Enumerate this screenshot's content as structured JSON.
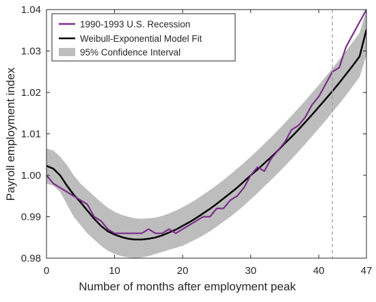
{
  "chart_data": {
    "type": "line",
    "xlabel": "Number of months after employment peak",
    "ylabel": "Payroll employment index",
    "xlim": [
      0,
      47
    ],
    "ylim": [
      0.98,
      1.04
    ],
    "x_ticks": [
      0,
      10,
      20,
      30,
      40,
      47
    ],
    "x_tick_labels": [
      "0",
      "10",
      "20",
      "30",
      "40",
      "47"
    ],
    "y_ticks": [
      0.98,
      0.99,
      1.0,
      1.01,
      1.02,
      1.03,
      1.04
    ],
    "y_tick_labels": [
      "0.98",
      "0.99",
      "1.00",
      "1.01",
      "1.02",
      "1.03",
      "1.04"
    ],
    "grid": false,
    "legend_position": "top-left",
    "vertical_reference_line": {
      "x": 42,
      "style": "dashed",
      "color": "#999999"
    },
    "colors": {
      "recession": "#7b2d8b",
      "fit": "#000000",
      "confidence": "#bdbdbd"
    },
    "series": [
      {
        "name": "1990-1993 U.S. Recession",
        "kind": "line",
        "x": [
          0,
          1,
          2,
          3,
          4,
          5,
          6,
          7,
          8,
          9,
          10,
          11,
          12,
          13,
          14,
          15,
          16,
          17,
          18,
          19,
          20,
          21,
          22,
          23,
          24,
          25,
          26,
          27,
          28,
          29,
          30,
          31,
          32,
          33,
          34,
          35,
          36,
          37,
          38,
          39,
          40,
          41,
          42,
          43,
          44,
          45,
          46,
          47
        ],
        "y": [
          1.0,
          0.998,
          0.997,
          0.996,
          0.995,
          0.994,
          0.993,
          0.99,
          0.989,
          0.987,
          0.986,
          0.986,
          0.986,
          0.986,
          0.986,
          0.987,
          0.986,
          0.986,
          0.987,
          0.986,
          0.987,
          0.988,
          0.989,
          0.99,
          0.99,
          0.992,
          0.992,
          0.994,
          0.995,
          0.997,
          1.0,
          1.002,
          1.001,
          1.004,
          1.006,
          1.008,
          1.011,
          1.012,
          1.014,
          1.017,
          1.019,
          1.022,
          1.025,
          1.026,
          1.031,
          1.034,
          1.037,
          1.04
        ]
      },
      {
        "name": "Weibull-Exponential Model Fit",
        "kind": "line",
        "x": [
          0,
          1,
          2,
          3,
          4,
          5,
          6,
          7,
          8,
          9,
          10,
          11,
          12,
          13,
          14,
          15,
          16,
          17,
          18,
          19,
          20,
          21,
          22,
          23,
          24,
          25,
          26,
          27,
          28,
          29,
          30,
          31,
          32,
          33,
          34,
          35,
          36,
          37,
          38,
          39,
          40,
          41,
          42,
          43,
          44,
          45,
          46,
          47
        ],
        "y": [
          1.0023,
          1.0016,
          1.0,
          0.9975,
          0.9953,
          0.9935,
          0.9915,
          0.9895,
          0.9878,
          0.9865,
          0.9857,
          0.9851,
          0.9847,
          0.9845,
          0.9845,
          0.9847,
          0.985,
          0.9855,
          0.9862,
          0.9869,
          0.9878,
          0.9887,
          0.9897,
          0.9908,
          0.9919,
          0.9931,
          0.9944,
          0.9957,
          0.997,
          0.9985,
          1.0,
          1.0014,
          1.0029,
          1.0044,
          1.006,
          1.0077,
          1.0093,
          1.011,
          1.0128,
          1.0146,
          1.0165,
          1.0184,
          1.0203,
          1.0223,
          1.0244,
          1.0265,
          1.0287,
          1.0352
        ]
      },
      {
        "name": "95% Confidence Interval",
        "kind": "band",
        "x": [
          0,
          1,
          2,
          3,
          4,
          5,
          6,
          7,
          8,
          9,
          10,
          11,
          12,
          13,
          14,
          15,
          16,
          17,
          18,
          19,
          20,
          21,
          22,
          23,
          24,
          25,
          26,
          27,
          28,
          29,
          30,
          31,
          32,
          33,
          34,
          35,
          36,
          37,
          38,
          39,
          40,
          41,
          42,
          43,
          44,
          45,
          46,
          47
        ],
        "lower": [
          0.998,
          0.9975,
          0.996,
          0.993,
          0.99,
          0.988,
          0.986,
          0.9845,
          0.983,
          0.9818,
          0.981,
          0.9805,
          0.9802,
          0.98,
          0.9802,
          0.9805,
          0.981,
          0.9815,
          0.982,
          0.9825,
          0.983,
          0.9838,
          0.9846,
          0.9855,
          0.9865,
          0.9876,
          0.9888,
          0.99,
          0.9913,
          0.9927,
          0.9942,
          0.9957,
          0.9973,
          0.9989,
          1.0005,
          1.0022,
          1.0039,
          1.0057,
          1.0075,
          1.0094,
          1.0113,
          1.0132,
          1.0152,
          1.0172,
          1.0193,
          1.0215,
          1.0237,
          1.029
        ],
        "upper": [
          1.0065,
          1.006,
          1.0045,
          1.0025,
          1.0,
          0.998,
          0.9965,
          0.995,
          0.9935,
          0.9922,
          0.9912,
          0.9905,
          0.99,
          0.9896,
          0.9895,
          0.9896,
          0.9898,
          0.9902,
          0.9908,
          0.9915,
          0.9923,
          0.9932,
          0.9942,
          0.9953,
          0.9964,
          0.9976,
          0.9989,
          1.0002,
          1.0016,
          1.003,
          1.0045,
          1.006,
          1.0076,
          1.0092,
          1.0109,
          1.0126,
          1.0144,
          1.0162,
          1.018,
          1.0199,
          1.0218,
          1.0238,
          1.0258,
          1.0279,
          1.03,
          1.0322,
          1.0344,
          1.04
        ]
      }
    ]
  }
}
